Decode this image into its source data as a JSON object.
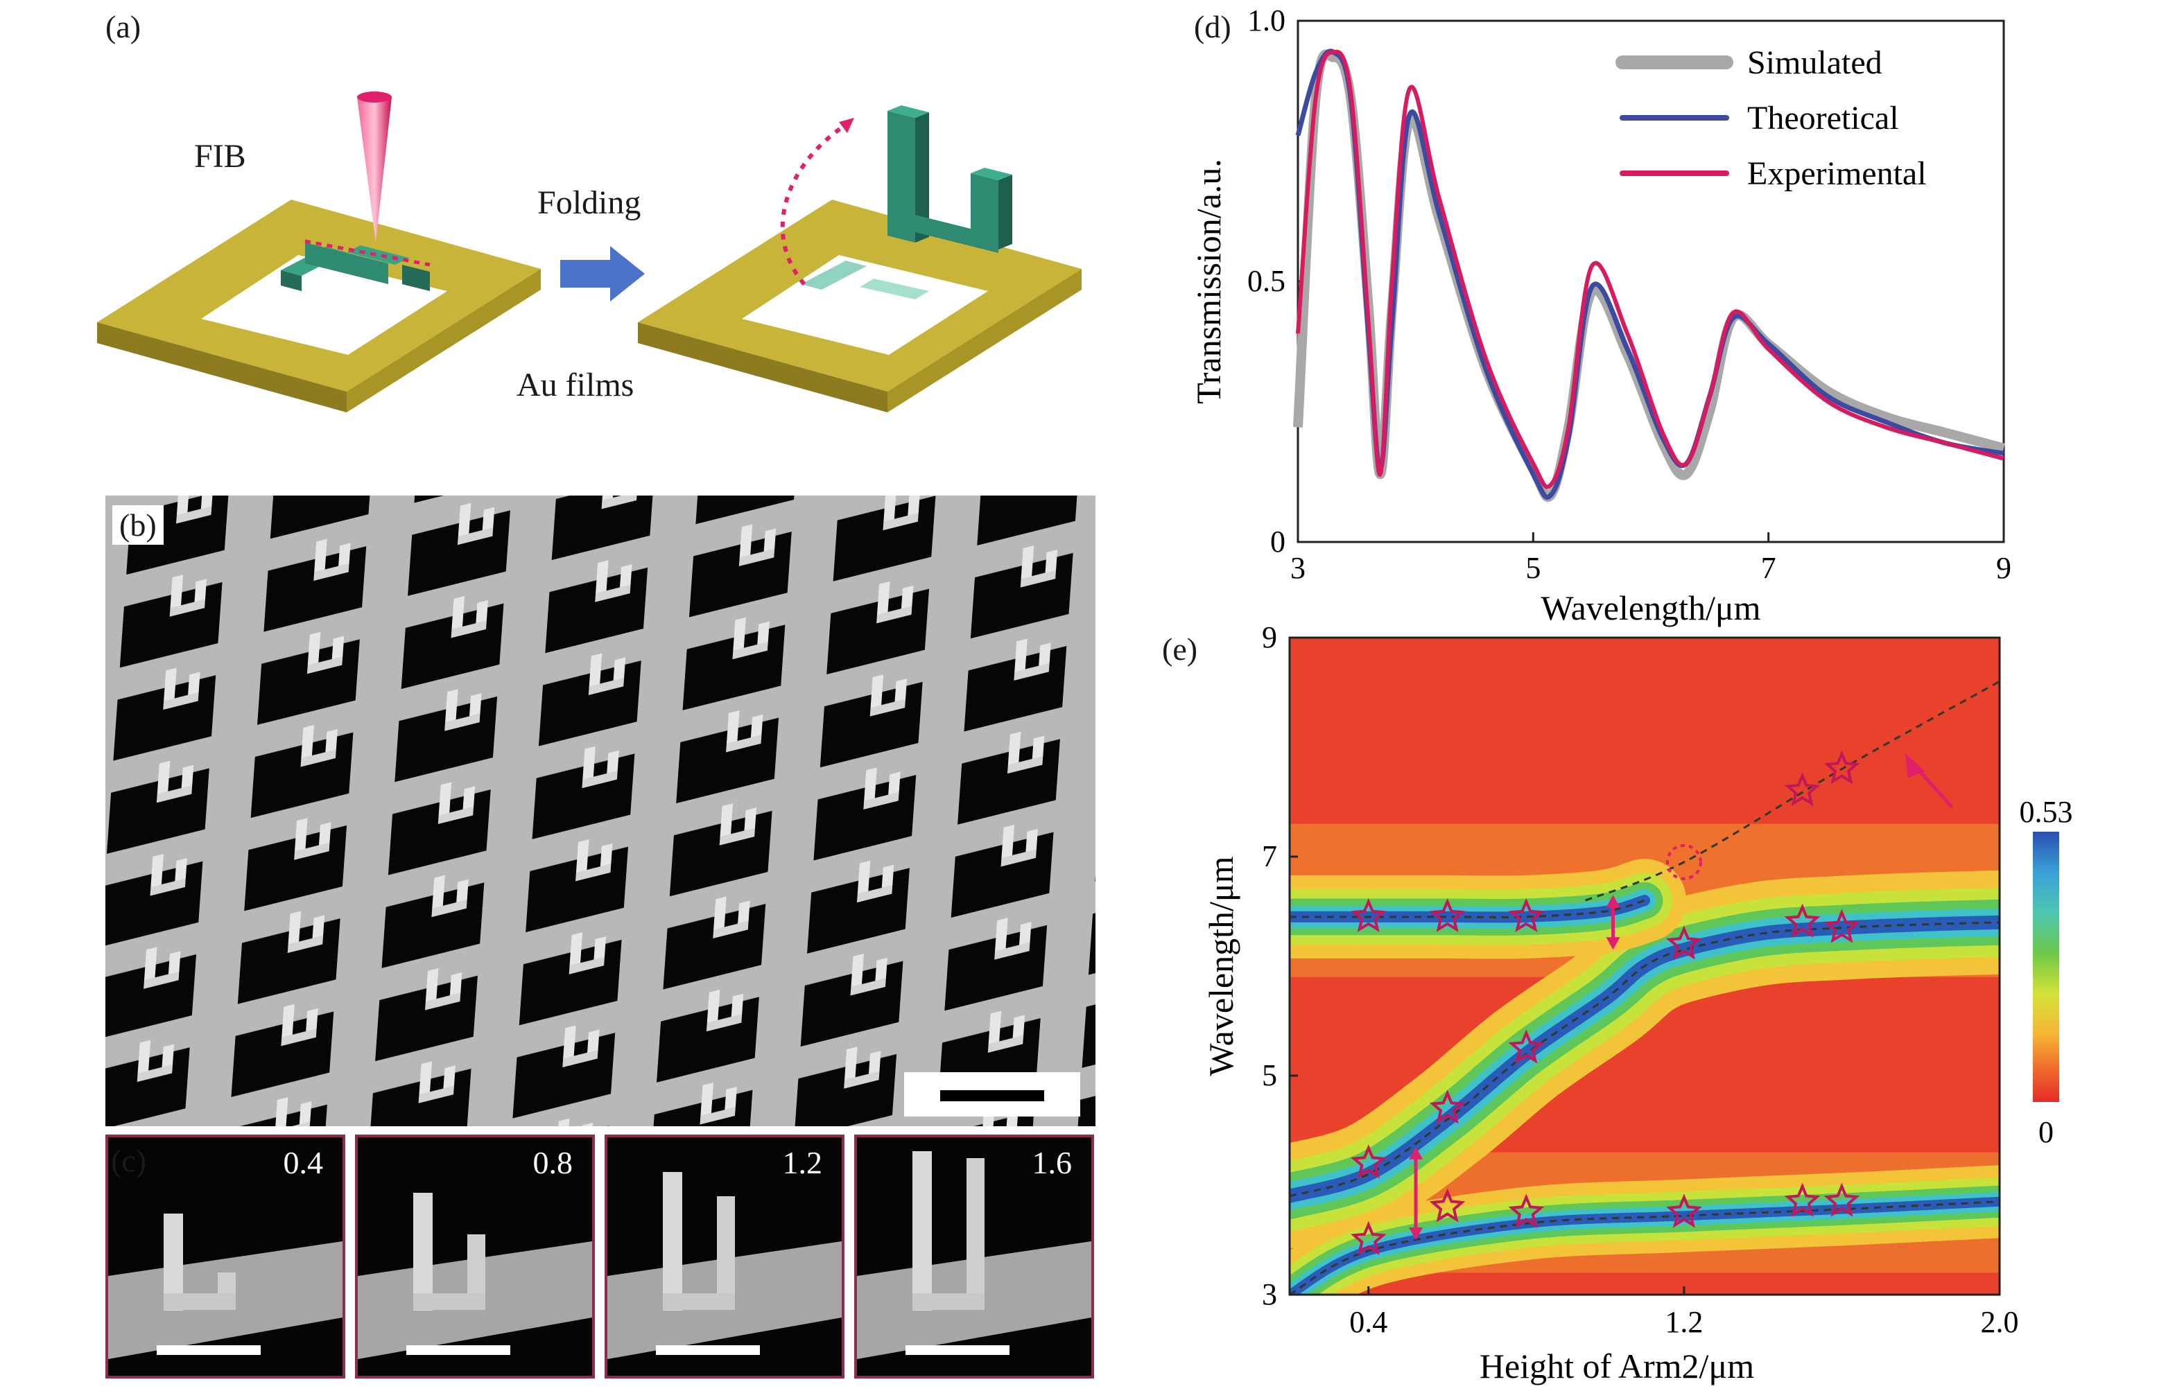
{
  "panels": {
    "a": {
      "label": "(a)",
      "fib_label": "FIB",
      "folding_label": "Folding",
      "films_label": "Au films"
    },
    "b": {
      "label": "(b)"
    },
    "c": {
      "label": "(c)",
      "insets": [
        "0.4",
        "0.8",
        "1.2",
        "1.6"
      ]
    },
    "d": {
      "label": "(d)",
      "legend": [
        "Simulated",
        "Theoretical",
        "Experimental"
      ]
    },
    "e": {
      "label": "(e)",
      "colorbar": {
        "max_label": "0.53",
        "min_label": "0"
      }
    }
  },
  "colors": {
    "gold": "#c9b43a",
    "teal": "#2f8a72",
    "teal_light": "#8fd3c0",
    "pink": "#e0206a",
    "arrow_blue": "#4a73c9",
    "simulated": "#a8a8a8",
    "theoretical": "#3c4aa0",
    "experimental": "#d81b60",
    "inset_frame": "#8e2b4e"
  },
  "chart_data": [
    {
      "type": "line",
      "xlabel": "Wavelength/μm",
      "ylabel": "Transmission/a.u.",
      "xlim": [
        3,
        9
      ],
      "ylim": [
        0,
        1.0
      ],
      "xticks": [
        "3",
        "5",
        "7",
        "9"
      ],
      "yticks": [
        "0",
        "0.5",
        "1.0"
      ],
      "legend_position": "top-right",
      "series": [
        {
          "name": "Simulated",
          "x": [
            3.0,
            3.15,
            3.3,
            3.45,
            3.6,
            3.7,
            3.8,
            3.95,
            4.2,
            4.6,
            5.0,
            5.15,
            5.3,
            5.5,
            5.8,
            6.1,
            6.3,
            6.5,
            6.7,
            7.0,
            7.5,
            8.0,
            8.5,
            9.0
          ],
          "y": [
            0.22,
            0.85,
            0.93,
            0.85,
            0.45,
            0.13,
            0.45,
            0.81,
            0.62,
            0.33,
            0.14,
            0.09,
            0.22,
            0.48,
            0.36,
            0.19,
            0.13,
            0.25,
            0.43,
            0.38,
            0.29,
            0.24,
            0.21,
            0.18
          ]
        },
        {
          "name": "Theoretical",
          "x": [
            3.0,
            3.15,
            3.3,
            3.45,
            3.6,
            3.7,
            3.8,
            3.95,
            4.2,
            4.6,
            5.0,
            5.15,
            5.3,
            5.5,
            5.8,
            6.1,
            6.3,
            6.5,
            6.7,
            7.0,
            7.5,
            8.0,
            8.5,
            9.0
          ],
          "y": [
            0.78,
            0.9,
            0.94,
            0.85,
            0.4,
            0.14,
            0.42,
            0.82,
            0.63,
            0.33,
            0.13,
            0.09,
            0.2,
            0.49,
            0.37,
            0.2,
            0.15,
            0.28,
            0.43,
            0.38,
            0.28,
            0.23,
            0.19,
            0.17
          ]
        },
        {
          "name": "Experimental",
          "x": [
            3.0,
            3.15,
            3.3,
            3.45,
            3.6,
            3.7,
            3.8,
            3.95,
            4.2,
            4.6,
            5.0,
            5.15,
            5.3,
            5.5,
            5.8,
            6.1,
            6.3,
            6.5,
            6.7,
            7.0,
            7.5,
            8.0,
            8.5,
            9.0
          ],
          "y": [
            0.4,
            0.85,
            0.94,
            0.86,
            0.42,
            0.13,
            0.5,
            0.87,
            0.66,
            0.35,
            0.15,
            0.11,
            0.22,
            0.53,
            0.4,
            0.21,
            0.15,
            0.28,
            0.44,
            0.37,
            0.27,
            0.22,
            0.19,
            0.16
          ]
        }
      ]
    },
    {
      "type": "heatmap",
      "xlabel": "Height of Arm2/μm",
      "ylabel": "Wavelength/μm",
      "xlim": [
        0.2,
        2.0
      ],
      "ylim": [
        3,
        9
      ],
      "xticks": [
        "0.4",
        "1.2",
        "2.0"
      ],
      "yticks": [
        "3",
        "5",
        "7",
        "9"
      ],
      "value_range": [
        0,
        0.53
      ],
      "bands": [
        {
          "x": [
            0.2,
            0.4,
            0.6,
            0.8,
            1.0,
            1.1,
            1.2,
            1.4,
            1.6,
            1.8,
            2.0
          ],
          "y": [
            3.9,
            4.1,
            4.6,
            5.2,
            5.7,
            6.0,
            6.15,
            6.3,
            6.35,
            6.38,
            6.4
          ]
        },
        {
          "x": [
            0.2,
            0.4,
            0.6,
            0.8,
            1.0,
            1.1
          ],
          "y": [
            6.45,
            6.45,
            6.45,
            6.45,
            6.5,
            6.6
          ]
        },
        {
          "x": [
            0.2,
            0.4,
            0.8,
            1.2,
            1.6,
            2.0
          ],
          "y": [
            3.0,
            3.4,
            3.65,
            3.72,
            3.78,
            3.85
          ]
        }
      ],
      "markers": {
        "x": [
          0.4,
          0.6,
          0.8,
          0.4,
          0.6,
          0.8,
          0.4,
          0.6,
          0.8,
          1.2,
          1.5,
          1.6,
          1.2,
          1.5,
          1.6,
          1.5,
          1.6
        ],
        "y": [
          6.45,
          6.45,
          6.45,
          4.2,
          4.7,
          5.25,
          3.5,
          3.8,
          3.75,
          3.75,
          3.85,
          3.85,
          6.2,
          6.4,
          6.35,
          7.6,
          7.8
        ]
      },
      "anticrossing_x": 1.2,
      "anticrossing_y": 6.95
    }
  ]
}
